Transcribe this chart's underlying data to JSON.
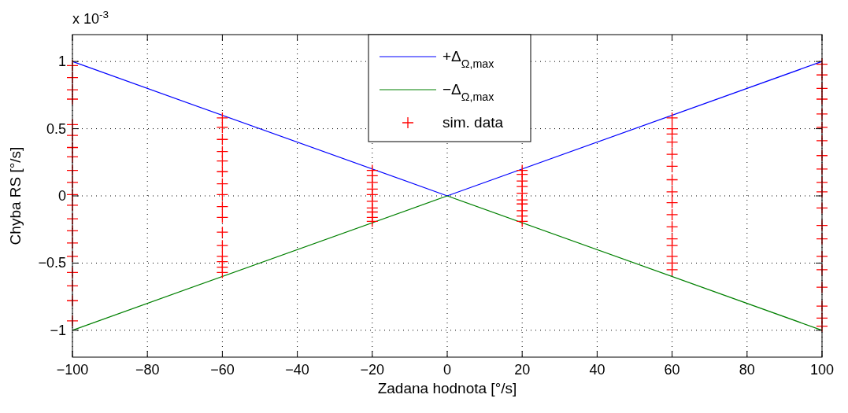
{
  "chart_data": {
    "type": "line",
    "xlabel": "Zadana hodnota [°/s]",
    "ylabel": "Chyba RS [°/s]",
    "annotations": [
      "x 10$^{-3}$"
    ],
    "xlim": [
      -100,
      100
    ],
    "ylim": [
      -1.2,
      1.2
    ],
    "xticks": [
      {
        "value": -100,
        "label": "−100"
      },
      {
        "value": -80,
        "label": "−80"
      },
      {
        "value": -60,
        "label": "−60"
      },
      {
        "value": -40,
        "label": "−40"
      },
      {
        "value": -20,
        "label": "−20"
      },
      0,
      20,
      40,
      60,
      80,
      100
    ],
    "yticks": [
      {
        "value": -1,
        "label": "−1"
      },
      {
        "value": -0.5,
        "label": "−0.5"
      },
      0,
      0.5,
      1
    ],
    "grid": true,
    "legend": "top",
    "series": [
      {
        "name": "+Δ$_{Ω,max}$",
        "color": "#0000ff",
        "marker": "none",
        "line_style": "solid",
        "x": [
          -100,
          0,
          100
        ],
        "values": [
          1,
          0,
          1
        ]
      },
      {
        "name": "−Δ$_{Ω,max}$",
        "color": "#008000",
        "marker": "none",
        "line_style": "solid",
        "x": [
          -100,
          0,
          100
        ],
        "values": [
          -1,
          0,
          -1
        ]
      },
      {
        "name": "sim. data",
        "type": "scatter",
        "color": "#ff0000",
        "marker": "cross",
        "x": [
          -100,
          -100,
          -100,
          -100,
          -100,
          -100,
          -100,
          -100,
          -100,
          -100,
          -100,
          -100,
          -100,
          -100,
          -100,
          -100,
          -100,
          -100,
          -100,
          -100,
          -60,
          -60,
          -60,
          -60,
          -60,
          -60,
          -60,
          -60,
          -60,
          -60,
          -60,
          -60,
          -60,
          -60,
          -60,
          -60,
          -20,
          -20,
          -20,
          -20,
          -20,
          -20,
          -20,
          -20,
          -20,
          -20,
          20,
          20,
          20,
          20,
          20,
          20,
          20,
          20,
          20,
          20,
          60,
          60,
          60,
          60,
          60,
          60,
          60,
          60,
          60,
          60,
          60,
          60,
          60,
          60,
          60,
          60,
          100,
          100,
          100,
          100,
          100,
          100,
          100,
          100,
          100,
          100,
          100,
          100,
          100,
          100,
          100,
          100,
          100,
          100,
          100,
          100
        ],
        "values": [
          0.97,
          0.88,
          0.79,
          0.72,
          0.53,
          0.45,
          0.36,
          0.29,
          0.19,
          0.1,
          0.01,
          -0.07,
          -0.17,
          -0.26,
          -0.35,
          -0.45,
          -0.57,
          -0.67,
          -0.78,
          -0.93,
          0.58,
          0.51,
          0.42,
          0.33,
          0.26,
          0.18,
          0.09,
          0.01,
          -0.08,
          -0.16,
          -0.27,
          -0.37,
          -0.45,
          -0.49,
          -0.53,
          -0.57,
          0.19,
          0.15,
          0.1,
          0.05,
          0.01,
          -0.04,
          -0.09,
          -0.12,
          -0.16,
          -0.19,
          0.19,
          0.16,
          0.11,
          0.07,
          0.02,
          -0.03,
          -0.06,
          -0.11,
          -0.15,
          -0.19,
          0.58,
          0.5,
          0.46,
          0.4,
          0.31,
          0.22,
          0.12,
          0.03,
          -0.05,
          -0.14,
          -0.23,
          -0.32,
          -0.37,
          -0.45,
          -0.5,
          -0.55,
          0.98,
          0.9,
          0.8,
          0.72,
          0.61,
          0.51,
          0.41,
          0.3,
          0.2,
          0.1,
          0.03,
          -0.09,
          -0.22,
          -0.32,
          -0.45,
          -0.55,
          -0.68,
          -0.82,
          -0.91,
          -0.97
        ]
      }
    ]
  }
}
